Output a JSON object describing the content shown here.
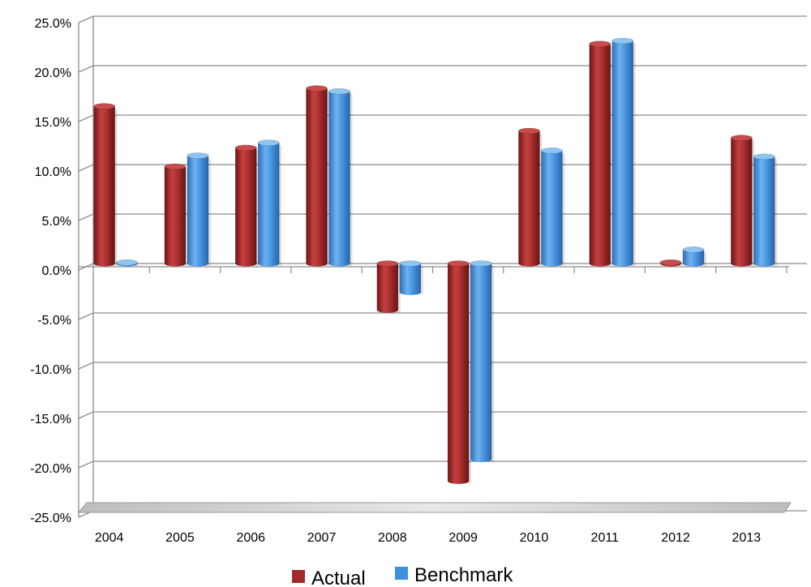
{
  "chart_data": {
    "type": "bar",
    "categories": [
      "2004",
      "2005",
      "2006",
      "2007",
      "2008",
      "2009",
      "2010",
      "2011",
      "2012",
      "2013"
    ],
    "series": [
      {
        "name": "Actual",
        "values": [
          15.9,
          9.8,
          11.7,
          17.7,
          -4.7,
          -22.0,
          13.4,
          22.2,
          0.1,
          12.7
        ],
        "color": "#a32a2a"
      },
      {
        "name": "Benchmark",
        "values": [
          0.1,
          10.9,
          12.2,
          17.4,
          -2.9,
          -19.8,
          11.4,
          22.5,
          1.4,
          10.8
        ],
        "color": "#3f8fdc"
      }
    ],
    "ylim": [
      -25,
      25
    ],
    "yticks": [
      "25.0%",
      "20.0%",
      "15.0%",
      "10.0%",
      "5.0%",
      "0.0%",
      "-5.0%",
      "-10.0%",
      "-15.0%",
      "-20.0%",
      "-25.0%"
    ],
    "ytick_values": [
      25,
      20,
      15,
      10,
      5,
      0,
      -5,
      -10,
      -15,
      -20,
      -25
    ],
    "title": "",
    "xlabel": "",
    "ylabel": "",
    "grid": true,
    "legend_position": "bottom"
  }
}
